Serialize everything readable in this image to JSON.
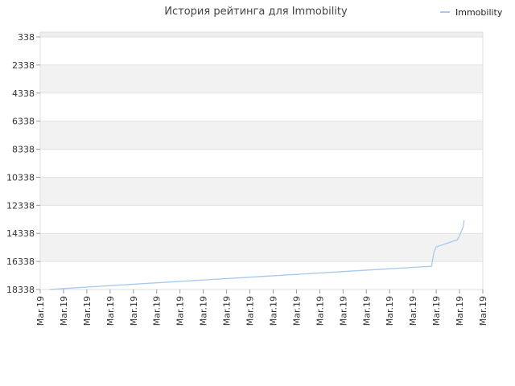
{
  "chart_data": {
    "type": "line",
    "title": "История рейтинга для Immobility",
    "legend": {
      "position": "top-right",
      "entries": [
        "Immobility"
      ]
    },
    "y_axis": {
      "reversed": true,
      "ylim": [
        338,
        18338
      ],
      "ticks": [
        "338",
        "2338",
        "4338",
        "6338",
        "8338",
        "10338",
        "12338",
        "14338",
        "16338",
        "18338"
      ]
    },
    "x_axis": {
      "ticks": [
        "Mar.19",
        "Mar.19",
        "Mar.19",
        "Mar.19",
        "Mar.19",
        "Mar.19",
        "Mar.19",
        "Mar.19",
        "Mar.19",
        "Mar.19",
        "Mar.19",
        "Mar.19",
        "Mar.19",
        "Mar.19",
        "Mar.19",
        "Mar.19",
        "Mar.19",
        "Mar.19",
        "Mar.19",
        "Mar.19"
      ]
    },
    "grid": true,
    "band_colors": [
      "#ffffff",
      "#f2f2f2"
    ],
    "series": [
      {
        "name": "Immobility",
        "color": "#a7c9ee",
        "points": [
          [
            0.4,
            18338
          ],
          [
            1.0,
            18270
          ],
          [
            3.0,
            18060
          ],
          [
            5.0,
            17860
          ],
          [
            7.0,
            17660
          ],
          [
            9.0,
            17460
          ],
          [
            11.0,
            17260
          ],
          [
            13.0,
            17060
          ],
          [
            15.0,
            16860
          ],
          [
            16.8,
            16680
          ],
          [
            16.9,
            15700
          ],
          [
            17.0,
            15300
          ],
          [
            17.9,
            14800
          ],
          [
            18.0,
            14500
          ],
          [
            18.15,
            13900
          ],
          [
            18.2,
            13400
          ]
        ]
      }
    ]
  }
}
